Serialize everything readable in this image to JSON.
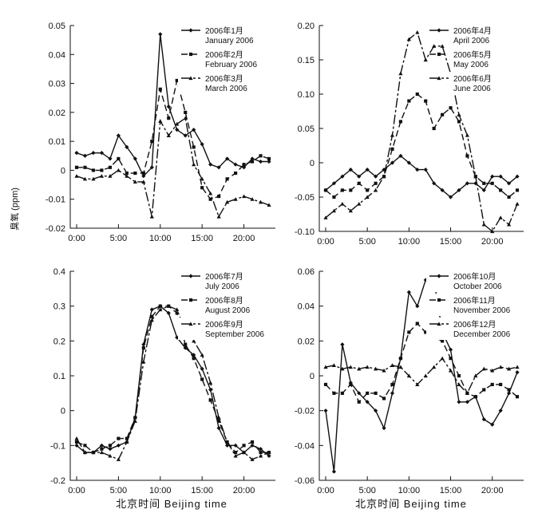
{
  "figure": {
    "ylabel": "臭氧 (ppm)",
    "xlabel_left": "北京时间 Beijing time",
    "xlabel_right": "北京时间 Beijing time"
  },
  "chart_data": [
    {
      "type": "line",
      "x": [
        "0:00",
        "1:00",
        "2:00",
        "3:00",
        "4:00",
        "5:00",
        "6:00",
        "7:00",
        "8:00",
        "9:00",
        "10:00",
        "11:00",
        "12:00",
        "13:00",
        "14:00",
        "15:00",
        "16:00",
        "17:00",
        "18:00",
        "19:00",
        "20:00",
        "21:00",
        "22:00",
        "23:00"
      ],
      "xticks": [
        "0:00",
        "5:00",
        "10:00",
        "15:00",
        "20:00"
      ],
      "yticks": [
        "0.05",
        "0.04",
        "0.03",
        "0.02",
        "0.01",
        "0",
        "-0.01",
        "-0.02"
      ],
      "ylim": [
        -0.02,
        0.05
      ],
      "legend_position": "top-right",
      "series": [
        {
          "name": "2006年1月 January 2006",
          "dash": "solid",
          "values": [
            0.006,
            0.005,
            0.006,
            0.006,
            0.004,
            0.012,
            0.008,
            0.004,
            -0.002,
            0.001,
            0.047,
            0.022,
            0.014,
            0.012,
            0.014,
            0.009,
            0.002,
            0.001,
            0.004,
            0.002,
            0.001,
            0.004,
            0.003,
            0.003
          ]
        },
        {
          "name": "2006年2月 February 2006",
          "dash": "8,4",
          "values": [
            0.001,
            0.001,
            0.0,
            0.0,
            0.001,
            0.004,
            -0.001,
            -0.001,
            -0.001,
            0.01,
            0.028,
            0.018,
            0.031,
            0.02,
            0.008,
            -0.006,
            -0.01,
            -0.009,
            -0.003,
            -0.001,
            0.002,
            0.003,
            0.005,
            0.004
          ]
        },
        {
          "name": "2006年3月 March 2006",
          "dash": "12,3,3,3",
          "values": [
            -0.002,
            -0.003,
            -0.003,
            -0.002,
            -0.002,
            0.0,
            -0.002,
            -0.004,
            -0.004,
            -0.016,
            0.017,
            0.012,
            0.016,
            0.018,
            0.002,
            -0.003,
            -0.008,
            -0.016,
            -0.011,
            -0.01,
            -0.009,
            -0.01,
            -0.011,
            -0.012
          ]
        }
      ]
    },
    {
      "type": "line",
      "x": [
        "0:00",
        "1:00",
        "2:00",
        "3:00",
        "4:00",
        "5:00",
        "6:00",
        "7:00",
        "8:00",
        "9:00",
        "10:00",
        "11:00",
        "12:00",
        "13:00",
        "14:00",
        "15:00",
        "16:00",
        "17:00",
        "18:00",
        "19:00",
        "20:00",
        "21:00",
        "22:00",
        "23:00"
      ],
      "xticks": [
        "0:00",
        "5:00",
        "10:00",
        "15:00",
        "20:00"
      ],
      "yticks": [
        "0.20",
        "0.15",
        "0.10",
        "0.05",
        "0",
        "-0.05",
        "-0.10"
      ],
      "ylim": [
        -0.1,
        0.2
      ],
      "legend_position": "top-right",
      "series": [
        {
          "name": "2006年4月 April 2006",
          "dash": "solid",
          "values": [
            -0.04,
            -0.03,
            -0.02,
            -0.01,
            -0.02,
            -0.01,
            -0.02,
            -0.01,
            0.0,
            0.01,
            0.0,
            -0.01,
            -0.01,
            -0.03,
            -0.04,
            -0.05,
            -0.04,
            -0.03,
            -0.03,
            -0.04,
            -0.02,
            -0.02,
            -0.03,
            -0.02
          ]
        },
        {
          "name": "2006年5月 May 2006",
          "dash": "8,4",
          "values": [
            -0.04,
            -0.05,
            -0.04,
            -0.04,
            -0.03,
            -0.04,
            -0.03,
            -0.02,
            0.02,
            0.06,
            0.09,
            0.1,
            0.09,
            0.05,
            0.07,
            0.08,
            0.06,
            0.01,
            -0.02,
            -0.03,
            -0.03,
            -0.04,
            -0.05,
            -0.04
          ]
        },
        {
          "name": "2006年6月 June 2006",
          "dash": "12,3,3,3",
          "values": [
            -0.08,
            -0.07,
            -0.06,
            -0.07,
            -0.06,
            -0.05,
            -0.04,
            -0.02,
            0.04,
            0.13,
            0.18,
            0.19,
            0.15,
            0.17,
            0.17,
            0.13,
            0.07,
            0.04,
            -0.02,
            -0.09,
            -0.1,
            -0.08,
            -0.09,
            -0.06
          ]
        }
      ]
    },
    {
      "type": "line",
      "x": [
        "0:00",
        "1:00",
        "2:00",
        "3:00",
        "4:00",
        "5:00",
        "6:00",
        "7:00",
        "8:00",
        "9:00",
        "10:00",
        "11:00",
        "12:00",
        "13:00",
        "14:00",
        "15:00",
        "16:00",
        "17:00",
        "18:00",
        "19:00",
        "20:00",
        "21:00",
        "22:00",
        "23:00"
      ],
      "xticks": [
        "0:00",
        "5:00",
        "10:00",
        "15:00",
        "20:00"
      ],
      "yticks": [
        "0.4",
        "0.3",
        "0.2",
        "0.1",
        "0",
        "-0.1",
        "-0.2"
      ],
      "ylim": [
        -0.2,
        0.4
      ],
      "legend_position": "top-right",
      "series": [
        {
          "name": "2006年7月 July 2006",
          "dash": "solid",
          "values": [
            -0.1,
            -0.12,
            -0.12,
            -0.1,
            -0.11,
            -0.1,
            -0.09,
            -0.02,
            0.19,
            0.29,
            0.3,
            0.28,
            0.21,
            0.18,
            0.16,
            0.12,
            0.06,
            -0.05,
            -0.1,
            -0.1,
            -0.12,
            -0.1,
            -0.11,
            -0.13
          ]
        },
        {
          "name": "2006年8月 August 2006",
          "dash": "8,4",
          "values": [
            -0.09,
            -0.1,
            -0.12,
            -0.11,
            -0.1,
            -0.08,
            -0.08,
            -0.02,
            0.18,
            0.27,
            0.3,
            0.3,
            0.28,
            0.19,
            0.15,
            0.09,
            0.03,
            -0.03,
            -0.09,
            -0.12,
            -0.1,
            -0.09,
            -0.12,
            -0.12
          ]
        },
        {
          "name": "2006年9月 September 2006",
          "dash": "12,3,3,3",
          "values": [
            -0.08,
            -0.12,
            -0.12,
            -0.12,
            -0.13,
            -0.14,
            -0.09,
            -0.03,
            0.14,
            0.26,
            0.29,
            0.3,
            0.29,
            0.23,
            0.2,
            0.16,
            0.08,
            -0.02,
            -0.09,
            -0.13,
            -0.12,
            -0.14,
            -0.13,
            -0.12
          ]
        }
      ]
    },
    {
      "type": "line",
      "x": [
        "0:00",
        "1:00",
        "2:00",
        "3:00",
        "4:00",
        "5:00",
        "6:00",
        "7:00",
        "8:00",
        "9:00",
        "10:00",
        "11:00",
        "12:00",
        "13:00",
        "14:00",
        "15:00",
        "16:00",
        "17:00",
        "18:00",
        "19:00",
        "20:00",
        "21:00",
        "22:00",
        "23:00"
      ],
      "xticks": [
        "0:00",
        "5:00",
        "10:00",
        "15:00",
        "20:00"
      ],
      "yticks": [
        "0.06",
        "0.04",
        "0.02",
        "0",
        "-0.02",
        "-0.04",
        "-0.06"
      ],
      "ylim": [
        -0.06,
        0.06
      ],
      "legend_position": "top-right",
      "series": [
        {
          "name": "2006年10月 October 2006",
          "dash": "solid",
          "values": [
            -0.02,
            -0.055,
            0.018,
            -0.004,
            -0.01,
            -0.015,
            -0.02,
            -0.03,
            -0.01,
            0.01,
            0.048,
            0.04,
            0.055,
            0.055,
            0.025,
            0.015,
            -0.015,
            -0.015,
            -0.012,
            -0.025,
            -0.028,
            -0.02,
            -0.01,
            0.002
          ]
        },
        {
          "name": "2006年11月 November 2006",
          "dash": "8,4",
          "values": [
            -0.005,
            -0.01,
            -0.01,
            -0.005,
            -0.015,
            -0.01,
            -0.01,
            -0.013,
            -0.005,
            0.01,
            0.025,
            0.03,
            0.025,
            0.022,
            0.02,
            0.01,
            0.0,
            -0.01,
            -0.012,
            -0.008,
            -0.005,
            -0.005,
            -0.008,
            -0.012
          ]
        },
        {
          "name": "2006年12月 December 2006",
          "dash": "12,3,3,3",
          "values": [
            0.005,
            0.006,
            0.004,
            0.005,
            0.004,
            0.005,
            0.004,
            0.003,
            0.006,
            0.005,
            0.0,
            -0.005,
            0.0,
            0.005,
            0.01,
            0.003,
            -0.005,
            -0.01,
            0.0,
            0.004,
            0.003,
            0.005,
            0.004,
            0.005
          ]
        }
      ]
    }
  ]
}
